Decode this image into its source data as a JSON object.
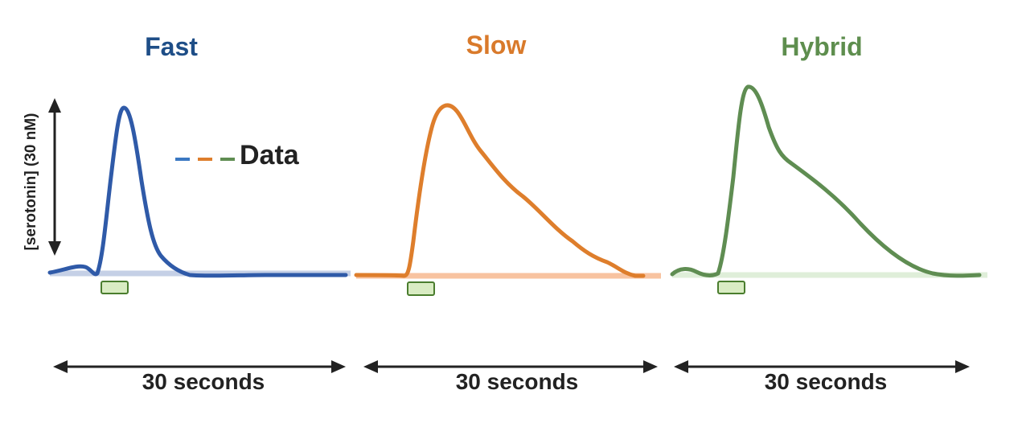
{
  "panels": [
    {
      "id": "fast",
      "title": "Fast",
      "color": "#2f5aa8",
      "baseline_color": "#c5d0e6",
      "time_label": "30 seconds"
    },
    {
      "id": "slow",
      "title": "Slow",
      "color": "#de7e2c",
      "baseline_color": "#f8c3a0",
      "time_label": "30 seconds"
    },
    {
      "id": "hybrid",
      "title": "Hybrid",
      "color": "#5f8d52",
      "baseline_color": "#dfeed9",
      "time_label": "30 seconds"
    }
  ],
  "title_colors": {
    "fast": "#1e4e87",
    "slow": "#d97a2b",
    "hybrid": "#5e8e4e"
  },
  "ylabel": "[serotonin] (30 nM)",
  "legend": {
    "label": "Data",
    "dash_colors": [
      "#3a78c2",
      "#de7e2c",
      "#5f8d52"
    ]
  },
  "stimulus": {
    "fill": "#d9ecc3",
    "stroke": "#4a7d2e"
  }
}
